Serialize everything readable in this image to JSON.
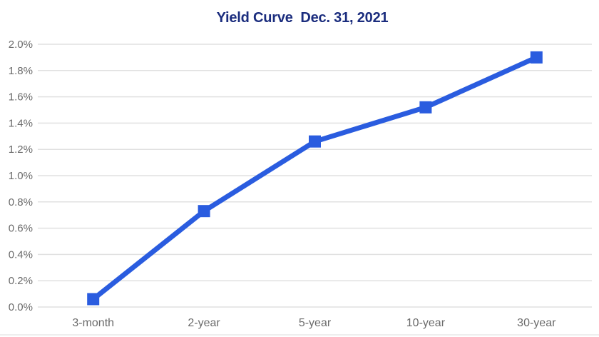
{
  "page": {
    "background": "#ffffff",
    "bottom_rule_color": "#e9e9e9"
  },
  "chart_data": {
    "type": "line",
    "title": "Yield Curve  Dec. 31, 2021",
    "title_color": "#1b2d7e",
    "line_color": "#2a5cdf",
    "marker": "square",
    "marker_size": 17,
    "line_width": 7,
    "gridline_color": "#e0e0e0",
    "tick_color": "#6a6a6a",
    "grid": "horizontal",
    "legend": "none",
    "xlabel": "",
    "ylabel": "",
    "categories": [
      "3-month",
      "2-year",
      "5-year",
      "10-year",
      "30-year"
    ],
    "series": [
      {
        "name": "Yield",
        "values": [
          0.06,
          0.73,
          1.26,
          1.52,
          1.9
        ]
      }
    ],
    "ylim": [
      0,
      2.0
    ],
    "y_tick_step": 0.2,
    "y_ticks": [
      "0.0%",
      "0.2%",
      "0.4%",
      "0.6%",
      "0.8%",
      "1.0%",
      "1.2%",
      "1.4%",
      "1.6%",
      "1.8%",
      "2.0%"
    ]
  }
}
